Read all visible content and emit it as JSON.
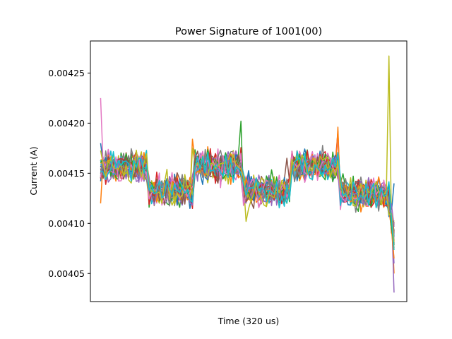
{
  "chart_data": {
    "type": "line",
    "title": "Power Signature of 1001(00)",
    "xlabel": "Time (320 us)",
    "ylabel": "Current (A)",
    "x_ticks_shown": false,
    "xlim": [
      -4,
      120
    ],
    "ylim": [
      0.004022,
      0.004282
    ],
    "yticks": [
      "0.00405",
      "0.00410",
      "0.00415",
      "0.00420",
      "0.00425"
    ],
    "grid": false,
    "legend": "none",
    "n_points": 116,
    "base_signal": {
      "segments": [
        {
          "x": [
            0,
            1,
            2
          ],
          "y": [
            0.004152,
            0.004155,
            0.004152
          ]
        },
        {
          "x": [
            3,
            18
          ],
          "y": [
            0.004156,
            0.004157
          ]
        },
        {
          "x": [
            19,
            36
          ],
          "y": [
            0.004132,
            0.004133
          ]
        },
        {
          "x": [
            37,
            55
          ],
          "y": [
            0.004158,
            0.004157
          ]
        },
        {
          "x": [
            56,
            74
          ],
          "y": [
            0.004133,
            0.004132
          ]
        },
        {
          "x": [
            75,
            93
          ],
          "y": [
            0.004158,
            0.004157
          ]
        },
        {
          "x": [
            94,
            112
          ],
          "y": [
            0.004132,
            0.004128
          ]
        },
        {
          "x": [
            113,
            115
          ],
          "y": [
            0.004122,
            0.00409
          ]
        }
      ]
    },
    "series": [
      {
        "color": "#1f77b4",
        "spikes": [
          {
            "x": 0,
            "y": 0.00418
          },
          {
            "x": 115,
            "y": 0.00414
          }
        ]
      },
      {
        "color": "#ff7f0e",
        "spikes": [
          {
            "x": 0,
            "y": 0.00412
          },
          {
            "x": 115,
            "y": 0.00405
          }
        ]
      },
      {
        "color": "#2ca02c",
        "spikes": [
          {
            "x": 55,
            "y": 0.004202
          },
          {
            "x": 93,
            "y": 0.00417
          }
        ]
      },
      {
        "color": "#d62728",
        "spikes": [
          {
            "x": 93,
            "y": 0.004192
          },
          {
            "x": 115,
            "y": 0.00409
          }
        ]
      },
      {
        "color": "#9467bd",
        "spikes": [
          {
            "x": 115,
            "y": 0.004031
          }
        ]
      },
      {
        "color": "#8c564b",
        "spikes": [
          {
            "x": 73,
            "y": 0.004165
          }
        ]
      },
      {
        "color": "#e377c2",
        "spikes": [
          {
            "x": 0,
            "y": 0.004225
          },
          {
            "x": 93,
            "y": 0.004184
          }
        ]
      },
      {
        "color": "#7f7f7f",
        "spikes": [
          {
            "x": 75,
            "y": 0.004168
          }
        ]
      },
      {
        "color": "#bcbd22",
        "spikes": [
          {
            "x": 110,
            "y": 0.00413
          },
          {
            "x": 113,
            "y": 0.004267
          },
          {
            "x": 57,
            "y": 0.004102
          }
        ]
      },
      {
        "color": "#17becf",
        "spikes": [
          {
            "x": 37,
            "y": 0.00417
          }
        ]
      },
      {
        "color": "#1f77b4",
        "spikes": [
          {
            "x": 37,
            "y": 0.00416
          }
        ]
      },
      {
        "color": "#ff7f0e",
        "spikes": [
          {
            "x": 36,
            "y": 0.004184
          },
          {
            "x": 93,
            "y": 0.004196
          }
        ]
      },
      {
        "color": "#2ca02c",
        "spikes": []
      },
      {
        "color": "#d62728",
        "spikes": [
          {
            "x": 75,
            "y": 0.004172
          }
        ]
      },
      {
        "color": "#9467bd",
        "spikes": [
          {
            "x": 115,
            "y": 0.00406
          }
        ]
      },
      {
        "color": "#8c564b",
        "spikes": []
      },
      {
        "color": "#e377c2",
        "spikes": [
          {
            "x": 18,
            "y": 0.00415
          }
        ]
      },
      {
        "color": "#7f7f7f",
        "spikes": []
      },
      {
        "color": "#bcbd22",
        "spikes": [
          {
            "x": 36,
            "y": 0.004175
          }
        ]
      },
      {
        "color": "#17becf",
        "spikes": [
          {
            "x": 56,
            "y": 0.00415
          }
        ]
      },
      {
        "color": "#1f77b4",
        "spikes": []
      },
      {
        "color": "#ff7f0e",
        "spikes": [
          {
            "x": 115,
            "y": 0.004065
          }
        ]
      },
      {
        "color": "#2ca02c",
        "spikes": []
      },
      {
        "color": "#d62728",
        "spikes": [
          {
            "x": 115,
            "y": 0.0041
          }
        ]
      },
      {
        "color": "#9467bd",
        "spikes": []
      },
      {
        "color": "#8c564b",
        "spikes": []
      },
      {
        "color": "#e377c2",
        "spikes": []
      },
      {
        "color": "#7f7f7f",
        "spikes": []
      },
      {
        "color": "#bcbd22",
        "spikes": []
      },
      {
        "color": "#17becf",
        "spikes": []
      }
    ]
  }
}
